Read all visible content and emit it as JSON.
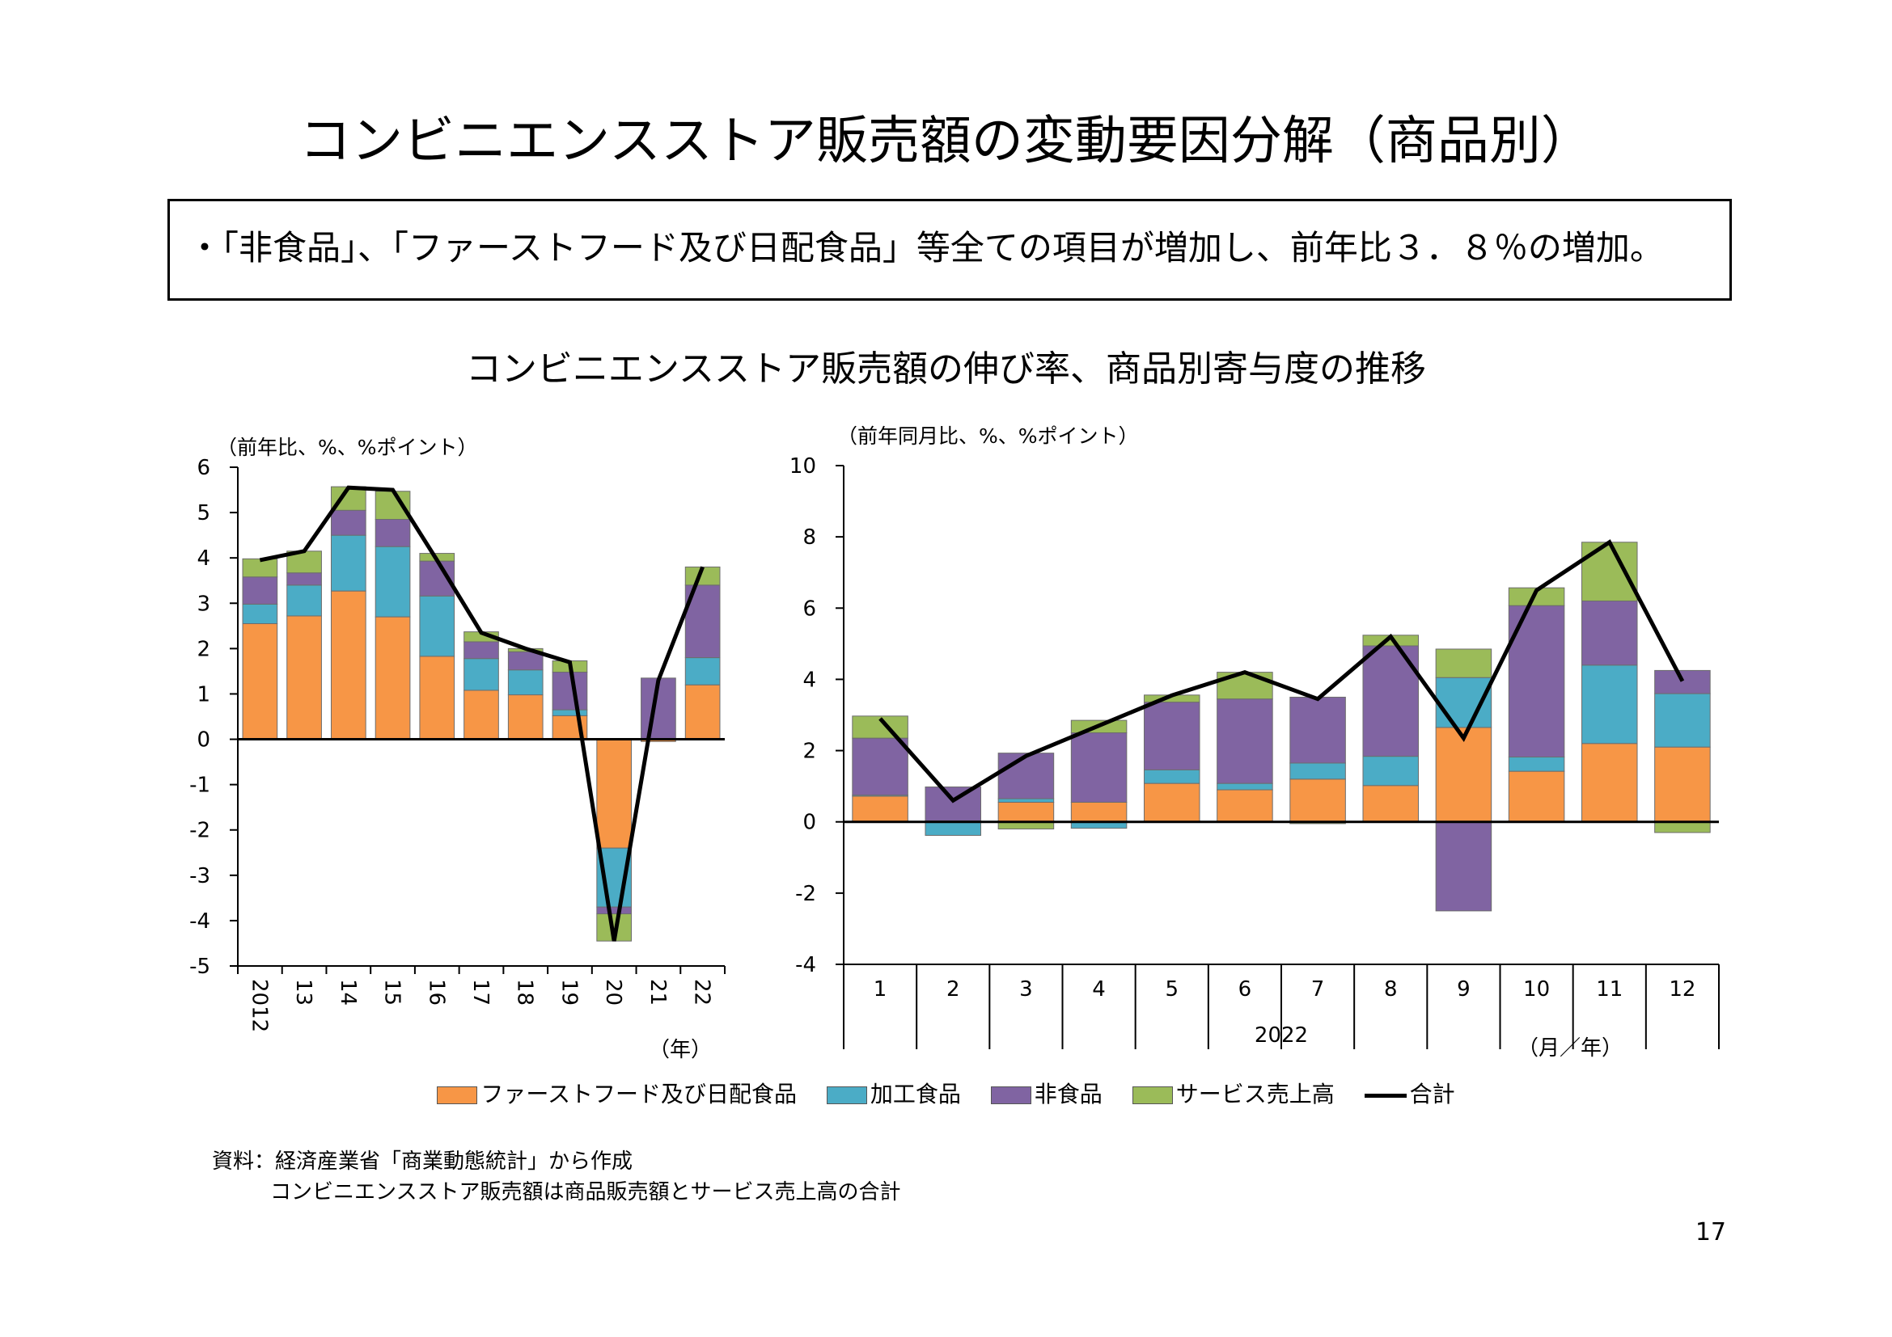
{
  "page": {
    "title": "コンビニエンスストア販売額の変動要因分解（商品別）",
    "summary": "・「非食品」、「ファーストフード及び日配食品」等全ての項目が増加し、前年比３．８％の増加。",
    "chart_heading": "コンビニエンスストア販売額の伸び率、商品別寄与度の推移",
    "source_line1": "資料：経済産業省「商業動態統計」から作成",
    "source_line2": "コンビニエンスストア販売額は商品販売額とサービス売上高の合計",
    "page_number": "17"
  },
  "colors": {
    "fastfood": "#F79646",
    "processed": "#4BACC6",
    "nonfood": "#8064A2",
    "service": "#9BBB59",
    "total": "#000000"
  },
  "legend": [
    {
      "key": "fastfood",
      "label": "ファーストフード及び日配食品"
    },
    {
      "key": "processed",
      "label": "加工食品"
    },
    {
      "key": "nonfood",
      "label": "非食品"
    },
    {
      "key": "service",
      "label": "サービス売上高"
    },
    {
      "key": "total",
      "label": "合計"
    }
  ],
  "chart_data": [
    {
      "type": "bar",
      "stacked": true,
      "unit_label": "（前年比、%、%ポイント）",
      "xlabel": "（年）",
      "ylim": [
        -5,
        6
      ],
      "yticks": [
        "6",
        "5",
        "4",
        "3",
        "2",
        "1",
        "0",
        "-1",
        "-2",
        "-3",
        "-4",
        "-5"
      ],
      "categories": [
        "2012",
        "13",
        "14",
        "15",
        "16",
        "17",
        "18",
        "19",
        "20",
        "21",
        "22"
      ],
      "series": [
        {
          "key": "fastfood",
          "name": "ファーストフード及び日配食品",
          "values": [
            2.55,
            2.72,
            3.27,
            2.7,
            1.83,
            1.08,
            0.98,
            0.52,
            -2.4,
            -0.05,
            1.2
          ]
        },
        {
          "key": "processed",
          "name": "加工食品",
          "values": [
            0.43,
            0.68,
            1.23,
            1.55,
            1.33,
            0.7,
            0.55,
            0.13,
            -1.3,
            0.0,
            0.6
          ]
        },
        {
          "key": "nonfood",
          "name": "非食品",
          "values": [
            0.6,
            0.27,
            0.55,
            0.6,
            0.77,
            0.37,
            0.4,
            0.83,
            -0.15,
            1.35,
            1.6
          ]
        },
        {
          "key": "service",
          "name": "サービス売上高",
          "values": [
            0.4,
            0.48,
            0.52,
            0.62,
            0.17,
            0.22,
            0.07,
            0.25,
            -0.6,
            0.0,
            0.4
          ]
        }
      ],
      "total": {
        "key": "total",
        "name": "合計",
        "values": [
          3.95,
          4.15,
          5.55,
          5.5,
          3.95,
          2.35,
          2.0,
          1.7,
          -4.45,
          1.3,
          3.8
        ]
      }
    },
    {
      "type": "bar",
      "stacked": true,
      "unit_label": "（前年同月比、%、%ポイント）",
      "xlabel": "（月／年）",
      "year_label": "2022",
      "ylim": [
        -4,
        10
      ],
      "yticks": [
        "10",
        "8",
        "6",
        "4",
        "2",
        "0",
        "-2",
        "-4"
      ],
      "categories": [
        "1",
        "2",
        "3",
        "4",
        "5",
        "6",
        "7",
        "8",
        "9",
        "10",
        "11",
        "12"
      ],
      "series": [
        {
          "key": "fastfood",
          "name": "ファーストフード及び日配食品",
          "values": [
            0.72,
            0.03,
            0.55,
            0.55,
            1.08,
            0.9,
            1.2,
            1.02,
            2.65,
            1.42,
            2.2,
            2.1
          ]
        },
        {
          "key": "processed",
          "name": "加工食品",
          "values": [
            0.03,
            -0.38,
            0.1,
            -0.18,
            0.38,
            0.18,
            0.45,
            0.82,
            1.4,
            0.4,
            2.2,
            1.5
          ]
        },
        {
          "key": "nonfood",
          "name": "非食品",
          "values": [
            1.6,
            0.95,
            1.28,
            1.95,
            1.9,
            2.37,
            1.85,
            3.1,
            -2.5,
            4.25,
            1.8,
            0.65
          ]
        },
        {
          "key": "service",
          "name": "サービス売上高",
          "values": [
            0.62,
            0.0,
            -0.2,
            0.35,
            0.2,
            0.75,
            -0.05,
            0.3,
            0.8,
            0.5,
            1.65,
            -0.3
          ]
        }
      ],
      "total": {
        "key": "total",
        "name": "合計",
        "values": [
          2.9,
          0.6,
          1.85,
          2.7,
          3.55,
          4.2,
          3.45,
          5.2,
          2.35,
          6.5,
          7.85,
          3.95
        ]
      }
    }
  ]
}
